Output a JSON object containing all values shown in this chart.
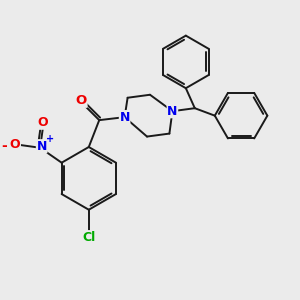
{
  "bg_color": "#ebebeb",
  "bond_color": "#1a1a1a",
  "bond_width": 1.4,
  "atom_colors": {
    "N": "#0000ee",
    "O": "#ee0000",
    "Cl": "#00aa00",
    "C": "#1a1a1a"
  },
  "figsize": [
    3.0,
    3.0
  ],
  "dpi": 100
}
